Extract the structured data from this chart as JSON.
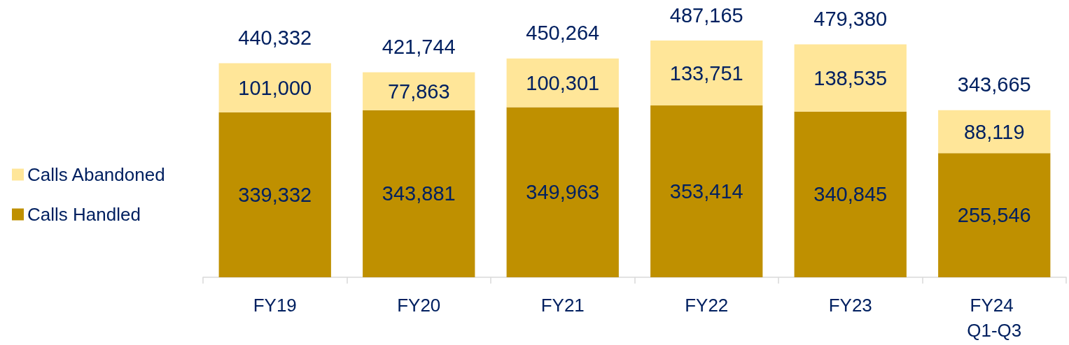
{
  "chart_data": {
    "type": "bar",
    "categories": [
      "FY19",
      "FY20",
      "FY21",
      "FY22",
      "FY23",
      "FY24 Q1-Q3"
    ],
    "series": [
      {
        "name": "Calls Handled",
        "color": "#bf9000",
        "values": [
          339332,
          343881,
          349963,
          353414,
          340845,
          255546
        ],
        "value_labels": [
          "339,332",
          "343,881",
          "349,963",
          "353,414",
          "340,845",
          "255,546"
        ]
      },
      {
        "name": "Calls Abandoned",
        "color": "#ffe699",
        "values": [
          101000,
          77863,
          100301,
          133751,
          138535,
          88119
        ],
        "value_labels": [
          "101,000",
          "77,863",
          "100,301",
          "133,751",
          "138,535",
          "88,119"
        ]
      }
    ],
    "stacked": true,
    "totals": [
      "440,332",
      "421,744",
      "450,264",
      "487,165",
      "479,380",
      "343,665"
    ],
    "legend": "left",
    "tick_labels": "x"
  }
}
